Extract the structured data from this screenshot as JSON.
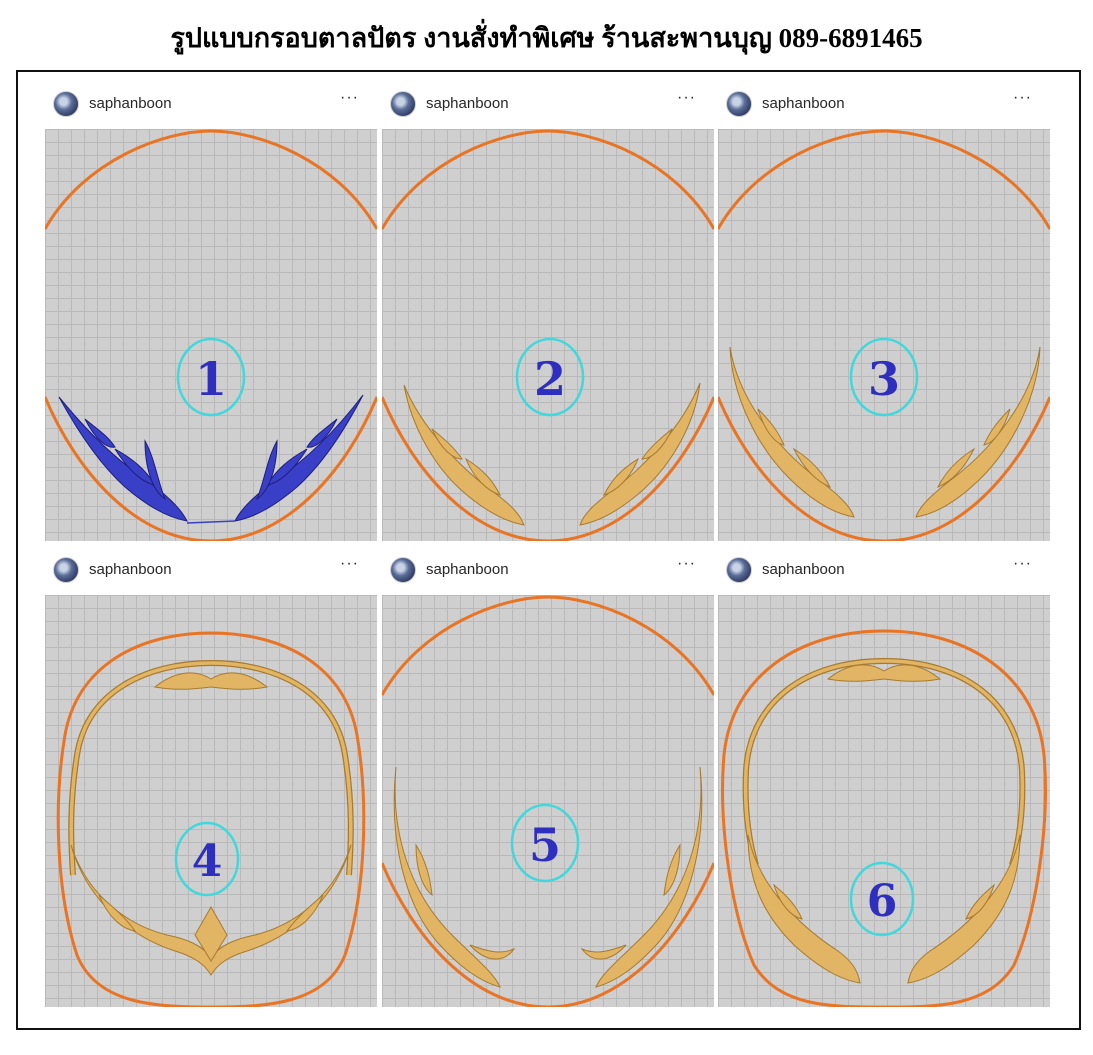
{
  "page": {
    "title": "รูปแบบกรอบตาลปัตร งานสั่งทำพิเศษ ร้านสะพานบุญ 089-6891465"
  },
  "posts": [
    {
      "username": "saphanboon",
      "more": "···",
      "number": "1",
      "ornament_color": "#3a3fc8"
    },
    {
      "username": "saphanboon",
      "more": "···",
      "number": "2",
      "ornament_color": "#e1b564"
    },
    {
      "username": "saphanboon",
      "more": "···",
      "number": "3",
      "ornament_color": "#e1b564"
    },
    {
      "username": "saphanboon",
      "more": "···",
      "number": "4",
      "ornament_color": "#e1b564"
    },
    {
      "username": "saphanboon",
      "more": "···",
      "number": "5",
      "ornament_color": "#e1b564"
    },
    {
      "username": "saphanboon",
      "more": "···",
      "number": "6",
      "ornament_color": "#e1b564"
    }
  ],
  "colors": {
    "outline": "#e87424",
    "circle": "#40d8dc",
    "number": "#2f2fbf",
    "grid_bg": "#cfcfcf"
  },
  "icons": {
    "avatar": "avatar-icon",
    "more": "more-options-icon"
  }
}
